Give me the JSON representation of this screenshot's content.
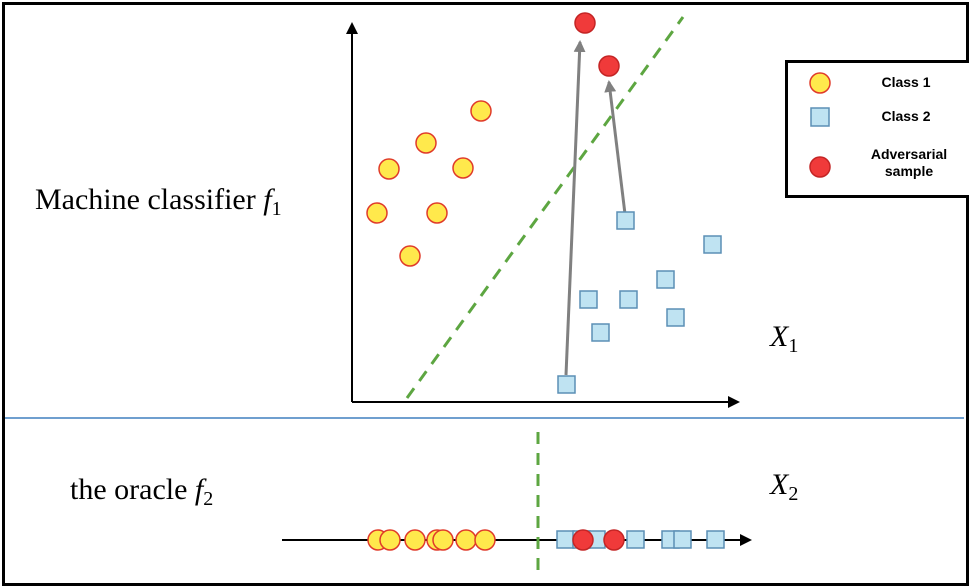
{
  "top_panel": {
    "title_prefix": "Machine classifier ",
    "title_var": "f",
    "title_sub": "1",
    "axis_label_var": "X",
    "axis_label_sub": "1"
  },
  "bottom_panel": {
    "title_prefix": "the oracle ",
    "title_var": "f",
    "title_sub": "2",
    "axis_label_var": "X",
    "axis_label_sub": "2"
  },
  "legend": {
    "items": [
      {
        "label": "Class 1",
        "marker": "circle",
        "fill": "#FFE94C",
        "stroke": "#E03B2A"
      },
      {
        "label": "Class 2",
        "marker": "square",
        "fill": "#BFE3F2",
        "stroke": "#5B8FB5"
      },
      {
        "label": "Adversarial sample",
        "marker": "circle",
        "fill": "#F03A3A",
        "stroke": "#C42525"
      }
    ]
  },
  "colors": {
    "class1_fill": "#FFE94C",
    "class1_stroke": "#E03B2A",
    "class2_fill": "#BFE3F2",
    "class2_stroke": "#5B8FB5",
    "adversarial_fill": "#F03A3A",
    "adversarial_stroke": "#C42525",
    "decision_boundary": "#5DA641",
    "perturbation_arrow": "#808080",
    "panel_divider": "#6F9FCF"
  }
}
